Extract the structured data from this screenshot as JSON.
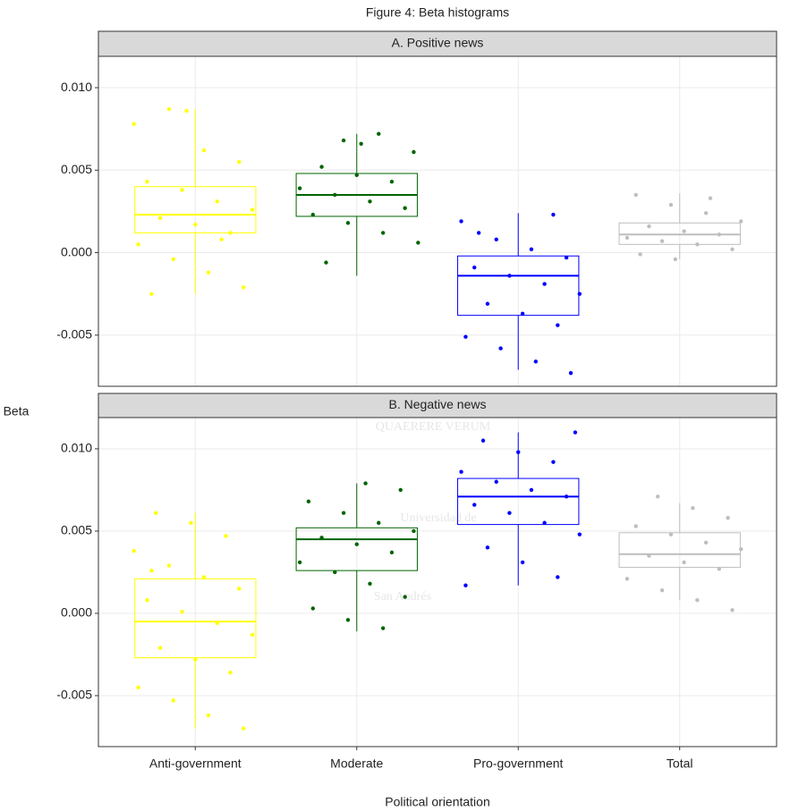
{
  "title": "Figure 4: Beta histograms",
  "x_label": "Political orientation",
  "y_label": "Beta",
  "categories": [
    "Anti-government",
    "Moderate",
    "Pro-government",
    "Total"
  ],
  "colors": [
    "#ffff00",
    "#006400",
    "#0000ff",
    "#bebebe"
  ],
  "watermark": [
    "QUAERERE VERUM",
    "Universidad de",
    "San Andrés"
  ],
  "chart_data": [
    {
      "type": "box",
      "title": "A. Positive news",
      "grid": true,
      "ylim": [
        -0.0081,
        0.0119
      ],
      "yticks": [
        {
          "value": -0.005,
          "label": "-0.005"
        },
        {
          "value": 0,
          "label": "0.000"
        },
        {
          "value": 0.005,
          "label": "0.005"
        },
        {
          "value": 0.01,
          "label": "0.010"
        }
      ],
      "boxes": [
        {
          "whisker_low": -0.0025,
          "q1": 0.0012,
          "median": 0.0023,
          "q3": 0.004,
          "whisker_high": 0.0087,
          "points": [
            0.0078,
            0.0087,
            0.0062,
            0.0055,
            0.0043,
            0.0038,
            0.0031,
            0.0026,
            0.0021,
            0.0017,
            0.0012,
            0.0005,
            -0.0004,
            -0.0012,
            -0.0021,
            -0.0025,
            0.0086,
            0.0008
          ]
        },
        {
          "whisker_low": -0.0014,
          "q1": 0.0022,
          "median": 0.0035,
          "q3": 0.0048,
          "whisker_high": 0.0072,
          "points": [
            0.0068,
            0.0072,
            0.0061,
            0.0052,
            0.0047,
            0.0043,
            0.0039,
            0.0035,
            0.0031,
            0.0027,
            0.0023,
            0.0018,
            0.0012,
            0.0006,
            -0.0006,
            0.0066
          ]
        },
        {
          "whisker_low": -0.0071,
          "q1": -0.0038,
          "median": -0.0014,
          "q3": -0.0002,
          "whisker_high": 0.0024,
          "points": [
            0.0023,
            0.0019,
            0.0008,
            0.0002,
            -0.0003,
            -0.0009,
            -0.0014,
            -0.0019,
            -0.0025,
            -0.0031,
            -0.0037,
            -0.0044,
            -0.0051,
            -0.0058,
            -0.0066,
            -0.0073,
            0.0012
          ]
        },
        {
          "whisker_low": -0.0004,
          "q1": 0.0005,
          "median": 0.0011,
          "q3": 0.0018,
          "whisker_high": 0.0036,
          "points": [
            0.0035,
            0.0029,
            0.0024,
            0.0019,
            0.0016,
            0.0013,
            0.0011,
            0.0009,
            0.0007,
            0.0005,
            0.0002,
            -0.0001,
            -0.0004,
            0.0033
          ]
        }
      ]
    },
    {
      "type": "box",
      "title": "B. Negative news",
      "grid": true,
      "ylim": [
        -0.0081,
        0.0119
      ],
      "yticks": [
        {
          "value": -0.005,
          "label": "-0.005"
        },
        {
          "value": 0,
          "label": "0.000"
        },
        {
          "value": 0.005,
          "label": "0.005"
        },
        {
          "value": 0.01,
          "label": "0.010"
        }
      ],
      "boxes": [
        {
          "whisker_low": -0.007,
          "q1": -0.0027,
          "median": -0.0005,
          "q3": 0.0021,
          "whisker_high": 0.0061,
          "points": [
            0.0061,
            0.0055,
            0.0047,
            0.0038,
            0.0029,
            0.0022,
            0.0015,
            0.0008,
            0.0001,
            -0.0006,
            -0.0013,
            -0.0021,
            -0.0028,
            -0.0036,
            -0.0045,
            -0.0053,
            -0.0062,
            -0.007,
            0.0026
          ]
        },
        {
          "whisker_low": -0.0011,
          "q1": 0.0026,
          "median": 0.0045,
          "q3": 0.0052,
          "whisker_high": 0.0079,
          "points": [
            0.0079,
            0.0075,
            0.0068,
            0.0061,
            0.0055,
            0.005,
            0.0046,
            0.0042,
            0.0037,
            0.0031,
            0.0025,
            0.0018,
            0.001,
            0.0003,
            -0.0004,
            -0.0009
          ]
        },
        {
          "whisker_low": 0.0017,
          "q1": 0.0054,
          "median": 0.0071,
          "q3": 0.0082,
          "whisker_high": 0.011,
          "points": [
            0.011,
            0.0105,
            0.0098,
            0.0092,
            0.0086,
            0.008,
            0.0075,
            0.0071,
            0.0066,
            0.0061,
            0.0055,
            0.0048,
            0.004,
            0.0031,
            0.0022,
            0.0017
          ]
        },
        {
          "whisker_low": 0.0008,
          "q1": 0.0028,
          "median": 0.0036,
          "q3": 0.0049,
          "whisker_high": 0.0067,
          "points": [
            0.0071,
            0.0064,
            0.0058,
            0.0053,
            0.0048,
            0.0043,
            0.0039,
            0.0035,
            0.0031,
            0.0027,
            0.0021,
            0.0014,
            0.0008,
            0.0002
          ]
        }
      ]
    }
  ]
}
